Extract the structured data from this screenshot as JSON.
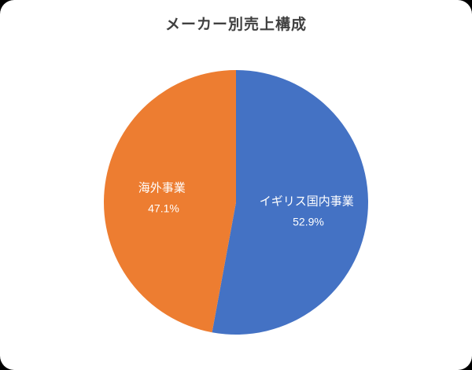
{
  "page": {
    "background_color": "#000000",
    "card_color": "#ffffff"
  },
  "chart_data": {
    "type": "pie",
    "title": "メーカー別売上構成",
    "legend": "none",
    "start_angle_deg": 0,
    "direction": "clockwise",
    "labels_inside": true,
    "slices": [
      {
        "label": "イギリス国内事業",
        "value": 52.9,
        "display_pct": "52.9%",
        "color": "#4472C4"
      },
      {
        "label": "海外事業",
        "value": 47.1,
        "display_pct": "47.1%",
        "color": "#ED7D31"
      }
    ]
  }
}
